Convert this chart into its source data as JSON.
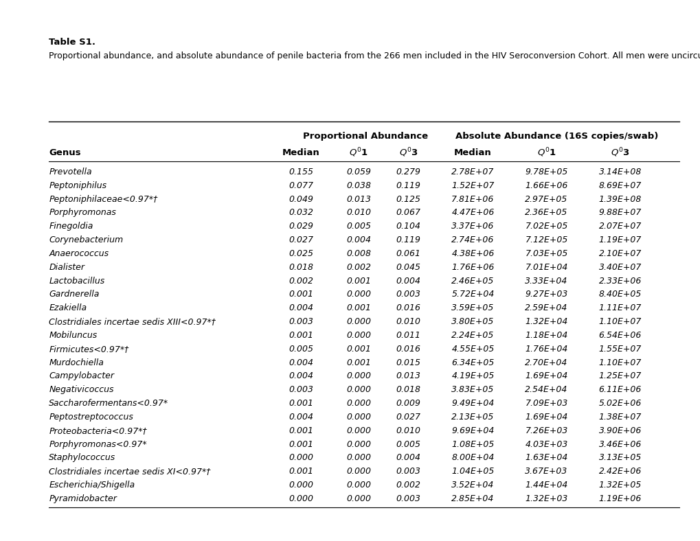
{
  "title_bold": "Table S1.",
  "title_normal": "Proportional abundance, and absolute abundance of penile bacteria from the 266 men included in the HIV Seroconversion Cohort. All men were uncircumcised.",
  "col_headers_group1": "Proportional Abundance",
  "col_headers_group2": "Absolute Abundance (16S copies/swab)",
  "col_headers": [
    "Genus",
    "Median",
    "Q˰1",
    "Q˰3",
    "Median",
    "Q˰1",
    "Q˰3"
  ],
  "col_headers_display": [
    "Genus",
    "Median",
    "Q$^0$1",
    "Q$^0$3",
    "Median",
    "Q$^0$1",
    "Q$^0$3"
  ],
  "rows": [
    [
      "Prevotella",
      "0.155",
      "0.059",
      "0.279",
      "2.78E+07",
      "9.78E+05",
      "3.14E+08"
    ],
    [
      "Peptoniphilus",
      "0.077",
      "0.038",
      "0.119",
      "1.52E+07",
      "1.66E+06",
      "8.69E+07"
    ],
    [
      "Peptoniphilaceae<0.97*†",
      "0.049",
      "0.013",
      "0.125",
      "7.81E+06",
      "2.97E+05",
      "1.39E+08"
    ],
    [
      "Porphyromonas",
      "0.032",
      "0.010",
      "0.067",
      "4.47E+06",
      "2.36E+05",
      "9.88E+07"
    ],
    [
      "Finegoldia",
      "0.029",
      "0.005",
      "0.104",
      "3.37E+06",
      "7.02E+05",
      "2.07E+07"
    ],
    [
      "Corynebacterium",
      "0.027",
      "0.004",
      "0.119",
      "2.74E+06",
      "7.12E+05",
      "1.19E+07"
    ],
    [
      "Anaerococcus",
      "0.025",
      "0.008",
      "0.061",
      "4.38E+06",
      "7.03E+05",
      "2.10E+07"
    ],
    [
      "Dialister",
      "0.018",
      "0.002",
      "0.045",
      "1.76E+06",
      "7.01E+04",
      "3.40E+07"
    ],
    [
      "Lactobacillus",
      "0.002",
      "0.001",
      "0.004",
      "2.46E+05",
      "3.33E+04",
      "2.33E+06"
    ],
    [
      "Gardnerella",
      "0.001",
      "0.000",
      "0.003",
      "5.72E+04",
      "9.27E+03",
      "8.40E+05"
    ],
    [
      "Ezakiella",
      "0.004",
      "0.001",
      "0.016",
      "3.59E+05",
      "2.59E+04",
      "1.11E+07"
    ],
    [
      "Clostridiales incertae sedis XIII<0.97*†",
      "0.003",
      "0.000",
      "0.010",
      "3.80E+05",
      "1.32E+04",
      "1.10E+07"
    ],
    [
      "Mobiluncus",
      "0.001",
      "0.000",
      "0.011",
      "2.24E+05",
      "1.18E+04",
      "6.54E+06"
    ],
    [
      "Firmicutes<0.97*†",
      "0.005",
      "0.001",
      "0.016",
      "4.55E+05",
      "1.76E+04",
      "1.55E+07"
    ],
    [
      "Murdochiella",
      "0.004",
      "0.001",
      "0.015",
      "6.34E+05",
      "2.70E+04",
      "1.10E+07"
    ],
    [
      "Campylobacter",
      "0.004",
      "0.000",
      "0.013",
      "4.19E+05",
      "1.69E+04",
      "1.25E+07"
    ],
    [
      "Negativicoccus",
      "0.003",
      "0.000",
      "0.018",
      "3.83E+05",
      "2.54E+04",
      "6.11E+06"
    ],
    [
      "Saccharofermentans<0.97*",
      "0.001",
      "0.000",
      "0.009",
      "9.49E+04",
      "7.09E+03",
      "5.02E+06"
    ],
    [
      "Peptostreptococcus",
      "0.004",
      "0.000",
      "0.027",
      "2.13E+05",
      "1.69E+04",
      "1.38E+07"
    ],
    [
      "Proteobacteria<0.97*†",
      "0.001",
      "0.000",
      "0.010",
      "9.69E+04",
      "7.26E+03",
      "3.90E+06"
    ],
    [
      "Porphyromonas<0.97*",
      "0.001",
      "0.000",
      "0.005",
      "1.08E+05",
      "4.03E+03",
      "3.46E+06"
    ],
    [
      "Staphylococcus",
      "0.000",
      "0.000",
      "0.004",
      "8.00E+04",
      "1.63E+04",
      "3.13E+05"
    ],
    [
      "Clostridiales incertae sedis XI<0.97*†",
      "0.001",
      "0.000",
      "0.003",
      "1.04E+05",
      "3.67E+03",
      "2.42E+06"
    ],
    [
      "Escherichia/Shigella",
      "0.000",
      "0.000",
      "0.002",
      "3.52E+04",
      "1.44E+04",
      "1.32E+05"
    ],
    [
      "Pyramidobacter",
      "0.000",
      "0.000",
      "0.003",
      "2.85E+04",
      "1.32E+03",
      "1.19E+06"
    ]
  ],
  "bg_color": "#ffffff",
  "text_color": "#000000",
  "font_size": 9.0,
  "title_font_size": 9.5,
  "header_font_size": 9.5,
  "fig_width": 10.2,
  "fig_height": 7.88,
  "dpi": 100
}
